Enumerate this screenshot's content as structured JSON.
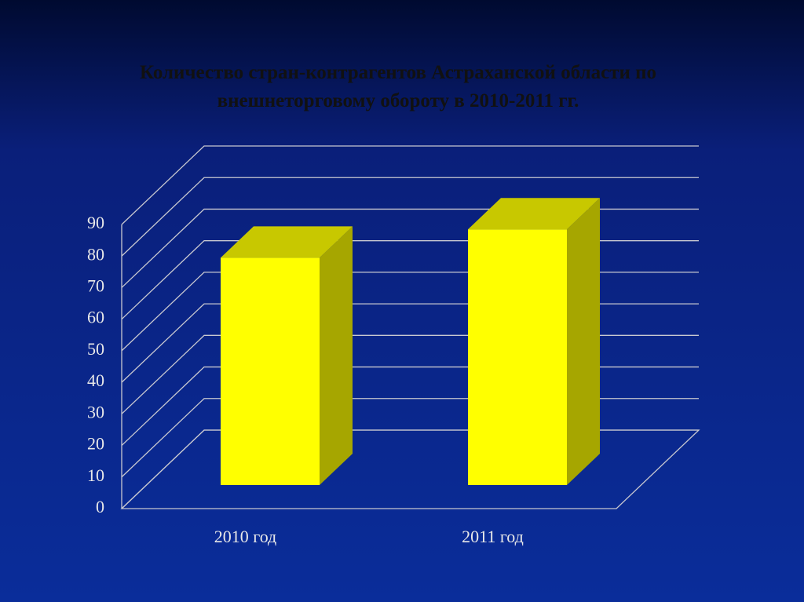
{
  "chart_data": {
    "type": "bar3d",
    "title": [
      "Количество стран-контрагентов Астраханской области по",
      "внешнеторговому обороту в 2010-2011 гг."
    ],
    "categories": [
      "2010 год",
      "2011 год"
    ],
    "values": [
      72,
      81
    ],
    "color": "#ffff00",
    "ylim": [
      0,
      90
    ],
    "yticks": [
      0,
      10,
      20,
      30,
      40,
      50,
      60,
      70,
      80,
      90
    ],
    "grid": true
  }
}
